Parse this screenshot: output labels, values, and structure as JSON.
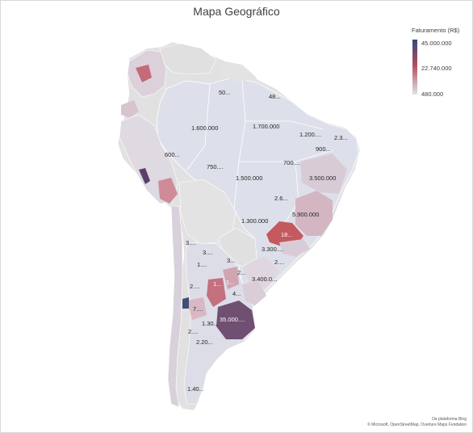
{
  "title": "Mapa Geográfico",
  "legend": {
    "title": "Faturamento (R$)",
    "max": "45.000.000",
    "mid": "22.740.000",
    "min": "480.000",
    "color_high": "#2f4c7e",
    "color_mid": "#b04a5a",
    "color_low": "#dfe3ee"
  },
  "regions": [
    {
      "label": "50..."
    },
    {
      "label": "48..."
    },
    {
      "label": "1.600.000"
    },
    {
      "label": "1.700.000"
    },
    {
      "label": "1.200...."
    },
    {
      "label": "2.3..."
    },
    {
      "label": "900..."
    },
    {
      "label": "600..."
    },
    {
      "label": "750...."
    },
    {
      "label": "700...."
    },
    {
      "label": "1.500.000"
    },
    {
      "label": "3.500.000"
    },
    {
      "label": "2.6..."
    },
    {
      "label": "5.900.000"
    },
    {
      "label": "1.300.000"
    },
    {
      "label": "18..."
    },
    {
      "label": "3.300...."
    },
    {
      "label": "3...."
    },
    {
      "label": "3...."
    },
    {
      "label": "1...."
    },
    {
      "label": "3..."
    },
    {
      "label": "2...."
    },
    {
      "label": "2..."
    },
    {
      "label": "3.400.0..."
    },
    {
      "label": "2...."
    },
    {
      "label": "1..."
    },
    {
      "label": "1..."
    },
    {
      "label": "4..."
    },
    {
      "label": "7...."
    },
    {
      "label": "35.000...."
    },
    {
      "label": "1.30..."
    },
    {
      "label": "2...."
    },
    {
      "label": "2.20..."
    },
    {
      "label": "1.40..."
    }
  ],
  "credit": {
    "line1": "Da plataforma Bing",
    "line2": "© Microsoft, OpenStreetMap, Overture Maps Fundation"
  }
}
